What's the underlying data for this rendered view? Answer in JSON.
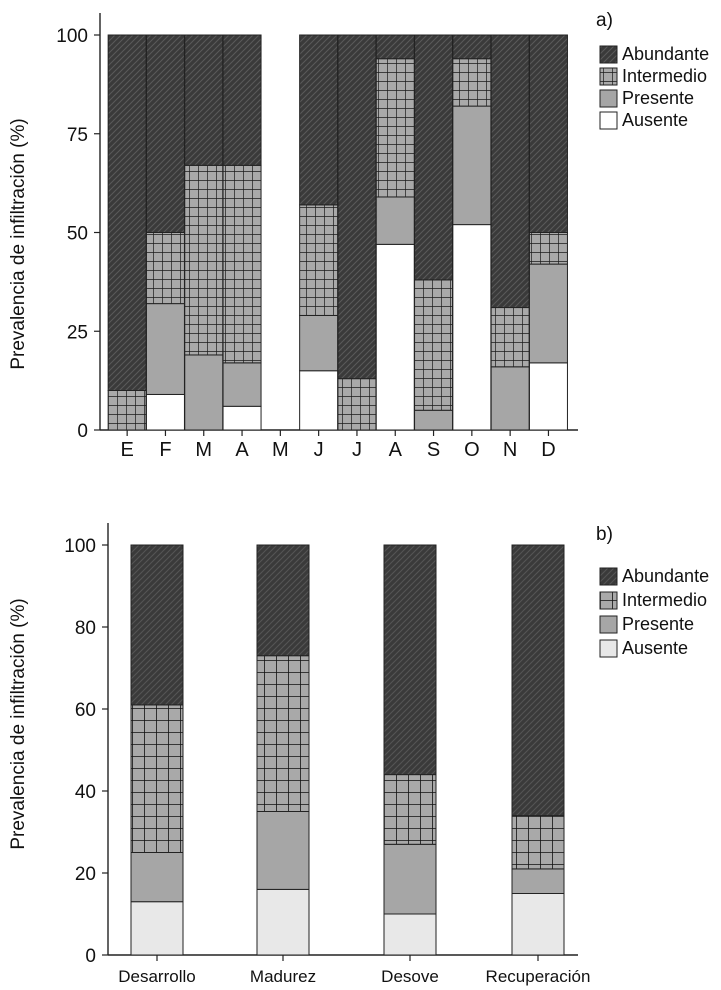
{
  "chart_data": [
    {
      "panel": "a)",
      "type": "bar",
      "stacked": true,
      "ylabel": "Prevalencia de infiltración (%)",
      "xlabel": "",
      "ylim": [
        0,
        100
      ],
      "yticks": [
        "0",
        "25",
        "50",
        "75",
        "100"
      ],
      "categories": [
        "E",
        "F",
        "M",
        "A",
        "M",
        "J",
        "J",
        "A",
        "S",
        "O",
        "N",
        "D"
      ],
      "series": [
        {
          "name": "Ausente",
          "values": [
            0,
            9,
            0,
            6,
            null,
            15,
            0,
            47,
            0,
            52,
            0,
            17
          ]
        },
        {
          "name": "Presente",
          "values": [
            0,
            23,
            19,
            11,
            null,
            14,
            0,
            12,
            5,
            30,
            16,
            25
          ]
        },
        {
          "name": "Intermedio",
          "values": [
            10,
            18,
            48,
            50,
            null,
            28,
            13,
            35,
            33,
            12,
            15,
            8
          ]
        },
        {
          "name": "Abundante",
          "values": [
            90,
            50,
            33,
            33,
            null,
            43,
            87,
            6,
            62,
            6,
            69,
            50
          ]
        }
      ],
      "legend": [
        "Abundante",
        "Intermedio",
        "Presente",
        "Ausente"
      ],
      "legend_position": "top-right",
      "grid": false
    },
    {
      "panel": "b)",
      "type": "bar",
      "stacked": true,
      "ylabel": "Prevalencia de infiltración (%)",
      "xlabel": "",
      "ylim": [
        0,
        100
      ],
      "yticks": [
        "0",
        "20",
        "40",
        "60",
        "80",
        "100"
      ],
      "categories": [
        "Desarrollo",
        "Madurez",
        "Desove",
        "Recuperación"
      ],
      "series": [
        {
          "name": "Ausente",
          "values": [
            13,
            16,
            10,
            15
          ]
        },
        {
          "name": "Presente",
          "values": [
            12,
            19,
            17,
            6
          ]
        },
        {
          "name": "Intermedio",
          "values": [
            36,
            38,
            17,
            13
          ]
        },
        {
          "name": "Abundante",
          "values": [
            39,
            27,
            56,
            66
          ]
        }
      ],
      "legend": [
        "Abundante",
        "Intermedio",
        "Presente",
        "Ausente"
      ],
      "legend_position": "top-right",
      "grid": false
    }
  ],
  "colors": {
    "Abundante": "#3a3a3a",
    "Intermedio": "#a9a9a9",
    "Presente": "#a6a6a6",
    "Ausente_a": "#ffffff",
    "Ausente_b": "#e8e8e8"
  }
}
